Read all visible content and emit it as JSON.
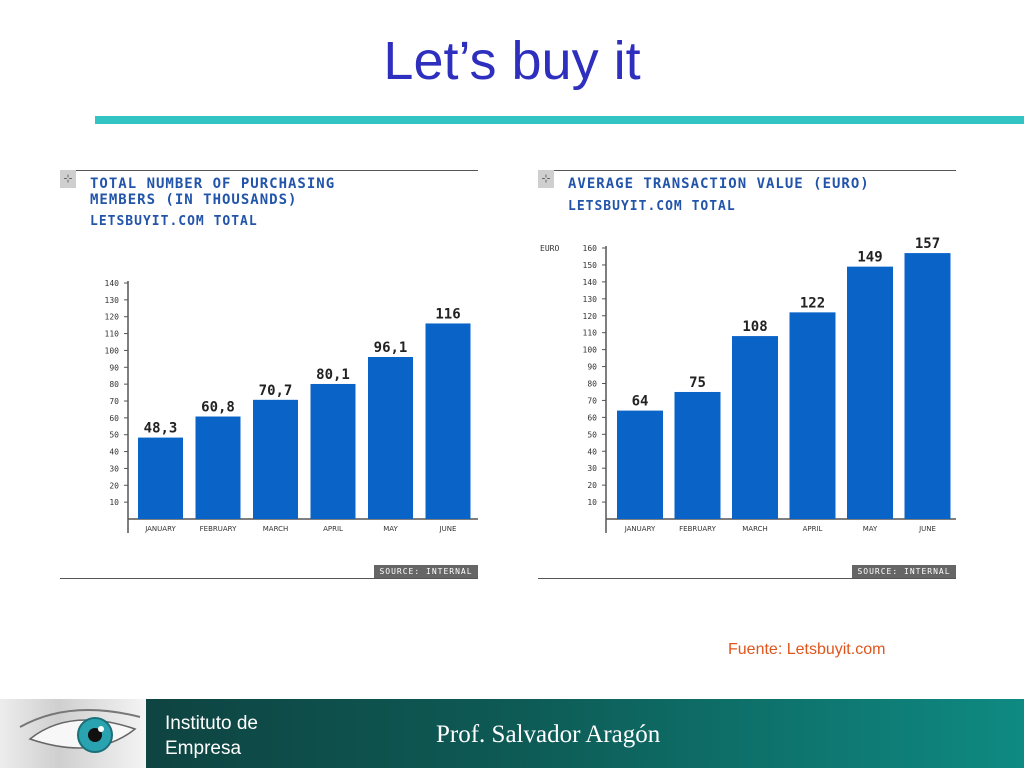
{
  "slide": {
    "title": "Let’s buy it",
    "source_note": "Fuente: Letsbuyit.com"
  },
  "footer": {
    "institute_line1": "Instituto de",
    "institute_line2": "Empresa",
    "professor": "Prof.  Salvador Aragón"
  },
  "colors": {
    "title": "#2f2fbf",
    "accent_rule": "#33c3c3",
    "bar": "#0a64c8",
    "chart_text": "#2255aa",
    "fuente": "#e0551c"
  },
  "chart_data": [
    {
      "type": "bar",
      "title": "TOTAL NUMBER OF PURCHASING\nMEMBERS (IN THOUSANDS)",
      "subtitle": "LETSBUYIT.COM TOTAL",
      "source": "SOURCE: INTERNAL",
      "ylabel": "",
      "categories": [
        "JANUARY",
        "FEBRUARY",
        "MARCH",
        "APRIL",
        "MAY",
        "JUNE"
      ],
      "values": [
        48.3,
        60.8,
        70.7,
        80.1,
        96.1,
        116
      ],
      "value_labels": [
        "48,3",
        "60,8",
        "70,7",
        "80,1",
        "96,1",
        "116"
      ],
      "ylim": [
        0,
        140
      ],
      "yticks": [
        10,
        20,
        30,
        40,
        50,
        60,
        70,
        80,
        90,
        100,
        110,
        120,
        130,
        140
      ],
      "ytick_labels": [
        "10",
        "20",
        "30",
        "40",
        "50",
        "60",
        "70",
        "80",
        "90",
        "100",
        "110",
        "120",
        "130",
        "140"
      ]
    },
    {
      "type": "bar",
      "title": "AVERAGE TRANSACTION VALUE (EURO)",
      "subtitle": "LETSBUYIT.COM TOTAL",
      "source": "SOURCE: INTERNAL",
      "ylabel": "EURO",
      "categories": [
        "JANUARY",
        "FEBRUARY",
        "MARCH",
        "APRIL",
        "MAY",
        "JUNE"
      ],
      "values": [
        64,
        75,
        108,
        122,
        149,
        157
      ],
      "value_labels": [
        "64",
        "75",
        "108",
        "122",
        "149",
        "157"
      ],
      "ylim": [
        0,
        160
      ],
      "yticks": [
        10,
        20,
        30,
        40,
        50,
        60,
        70,
        80,
        90,
        100,
        110,
        120,
        130,
        140,
        150,
        160
      ],
      "ytick_labels": [
        "10",
        "20",
        "30",
        "40",
        "50",
        "60",
        "70",
        "80",
        "90",
        "100",
        "110",
        "120",
        "130",
        "140",
        "150",
        "160"
      ]
    }
  ]
}
